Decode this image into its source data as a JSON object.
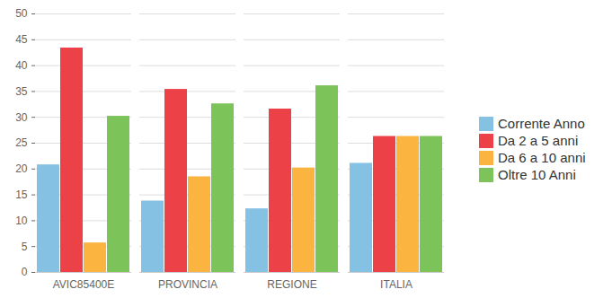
{
  "chart_data": {
    "type": "bar",
    "categories": [
      "AVIC85400E",
      "PROVINCIA",
      "REGIONE",
      "ITALIA"
    ],
    "series": [
      {
        "name": "Corrente Anno",
        "color": "#85c1e3",
        "values": [
          20.8,
          13.8,
          12.3,
          21.1
        ]
      },
      {
        "name": "Da 2 a 5 anni",
        "color": "#ec4147",
        "values": [
          43.4,
          35.4,
          31.6,
          26.3
        ]
      },
      {
        "name": "Da 6 a 10 anni",
        "color": "#fbb440",
        "values": [
          5.7,
          18.5,
          20.2,
          26.3
        ]
      },
      {
        "name": "Oltre 10 Anni",
        "color": "#7cc35a",
        "values": [
          30.2,
          32.6,
          36.1,
          26.3
        ]
      }
    ],
    "ylim": [
      0,
      50
    ],
    "yticks": [
      0,
      5,
      10,
      15,
      20,
      25,
      30,
      35,
      40,
      45,
      50
    ],
    "grid": true,
    "legend": "right"
  }
}
